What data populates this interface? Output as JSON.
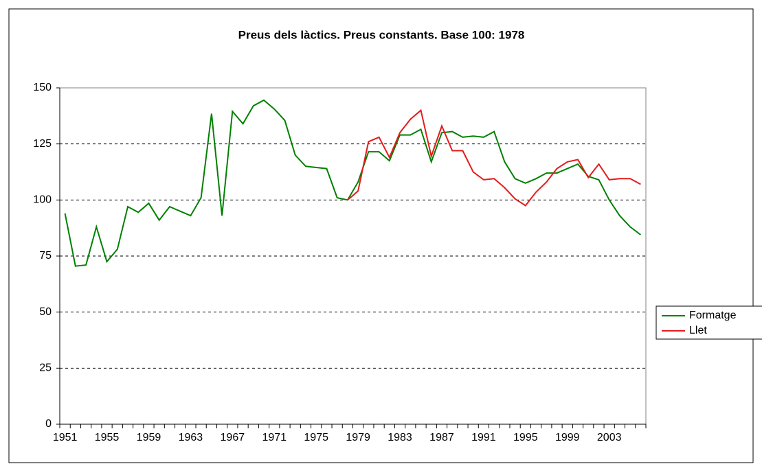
{
  "chart_data": {
    "type": "line",
    "title": "Preus dels làctics. Preus constants. Base 100: 1978",
    "categories": [
      "1951",
      null,
      null,
      null,
      "1955",
      null,
      null,
      null,
      "1959",
      null,
      null,
      null,
      "1963",
      null,
      null,
      null,
      "1967",
      null,
      null,
      null,
      "1971",
      null,
      null,
      null,
      "1975",
      null,
      null,
      null,
      "1979",
      null,
      null,
      null,
      "1983",
      null,
      null,
      null,
      "1987",
      null,
      null,
      null,
      "1991",
      null,
      null,
      null,
      "1995",
      null,
      null,
      null,
      "1999",
      null,
      null,
      null,
      "2003",
      null,
      null,
      null
    ],
    "series": [
      {
        "name": "Formatge",
        "color": "#008000",
        "values": [
          94,
          70.5,
          71,
          88,
          72.5,
          78,
          97,
          94.5,
          98.5,
          91,
          97,
          95,
          93,
          101,
          138.5,
          93,
          139.5,
          134,
          142,
          144.5,
          140.5,
          135.5,
          120,
          115,
          114.5,
          114,
          101,
          100,
          108,
          121.5,
          121.5,
          117.5,
          129,
          129,
          131.5,
          117,
          130,
          130.5,
          128,
          128.5,
          128,
          130.5,
          117,
          109.5,
          107.5,
          109.5,
          112,
          112,
          114,
          116,
          110.5,
          109,
          100,
          93,
          88,
          84.5
        ]
      },
      {
        "name": "Llet",
        "color": "#e41b1b",
        "values": [
          null,
          null,
          null,
          null,
          null,
          null,
          null,
          null,
          null,
          null,
          null,
          null,
          null,
          null,
          null,
          null,
          null,
          null,
          null,
          null,
          null,
          null,
          null,
          null,
          null,
          null,
          null,
          100,
          104,
          126,
          128,
          119,
          130,
          136,
          140,
          119.5,
          133,
          122,
          122,
          112.5,
          109,
          109.5,
          105.5,
          100.5,
          97.5,
          103.5,
          108,
          114,
          117,
          118,
          110,
          116,
          109,
          109.5,
          109.5,
          107
        ]
      }
    ],
    "ylim": [
      0,
      150
    ],
    "yticks": [
      0,
      25,
      50,
      75,
      100,
      125,
      150
    ],
    "grid": true,
    "legend": "right"
  }
}
